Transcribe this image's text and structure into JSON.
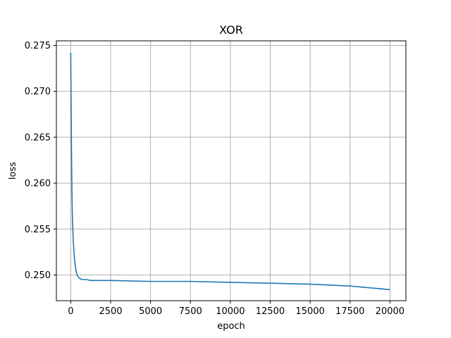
{
  "chart_data": {
    "type": "line",
    "title": "XOR",
    "xlabel": "epoch",
    "ylabel": "loss",
    "xlim": [
      -900,
      21000
    ],
    "ylim": [
      0.2472,
      0.2755
    ],
    "grid": true,
    "xticks": [
      0,
      2500,
      5000,
      7500,
      10000,
      12500,
      15000,
      17500,
      20000
    ],
    "xtick_labels": [
      "0",
      "2500",
      "5000",
      "7500",
      "10000",
      "12500",
      "15000",
      "17500",
      "20000"
    ],
    "yticks": [
      0.25,
      0.255,
      0.26,
      0.265,
      0.27,
      0.275
    ],
    "ytick_labels": [
      "0.250",
      "0.255",
      "0.260",
      "0.265",
      "0.270",
      "0.275"
    ],
    "series": [
      {
        "color": "#1f77b4",
        "x": [
          0,
          25,
          50,
          75,
          100,
          150,
          200,
          250,
          300,
          350,
          400,
          500,
          600,
          700,
          800,
          900,
          1000,
          1250,
          1500,
          2000,
          2500,
          5000,
          7500,
          10000,
          12500,
          15000,
          17500,
          20000
        ],
        "y": [
          0.2742,
          0.268,
          0.263,
          0.259,
          0.2565,
          0.254,
          0.2525,
          0.2515,
          0.2508,
          0.2503,
          0.25,
          0.2497,
          0.2496,
          0.2495,
          0.2495,
          0.2495,
          0.2495,
          0.2494,
          0.2494,
          0.2494,
          0.2494,
          0.2493,
          0.2493,
          0.2492,
          0.2491,
          0.249,
          0.2488,
          0.2484
        ]
      }
    ]
  }
}
